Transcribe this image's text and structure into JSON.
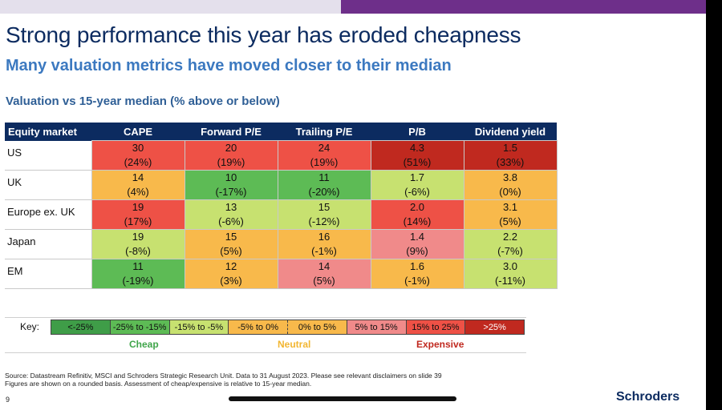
{
  "slide": {
    "title": "Strong performance this year has eroded cheapness",
    "subtitle": "Many valuation metrics have moved closer to their median",
    "table_heading": "Valuation vs 15-year median (% above or below)",
    "page_number": "9",
    "brand": "Schroders",
    "source_lines": [
      "Source: Datastream Refinitiv, MSCI and Schroders Strategic Research Unit. Data to 31 August 2023. Please see relevant disclaimers on slide 39",
      "Figures are shown on a rounded basis. Assessment of cheap/expensive is relative to 15-year median."
    ]
  },
  "table": {
    "headers": [
      "Equity market",
      "CAPE",
      "Forward P/E",
      "Trailing P/E",
      "P/B",
      "Dividend yield"
    ],
    "rows": [
      {
        "market": "US",
        "cells": [
          {
            "value": "30",
            "pct": "(24%)",
            "band": "red"
          },
          {
            "value": "20",
            "pct": "(19%)",
            "band": "red"
          },
          {
            "value": "24",
            "pct": "(19%)",
            "band": "red"
          },
          {
            "value": "4.3",
            "pct": "(51%)",
            "band": "deepred"
          },
          {
            "value": "1.5",
            "pct": "(33%)",
            "band": "deepred"
          }
        ]
      },
      {
        "market": "UK",
        "cells": [
          {
            "value": "14",
            "pct": "(4%)",
            "band": "orange"
          },
          {
            "value": "10",
            "pct": "(-17%)",
            "band": "green"
          },
          {
            "value": "11",
            "pct": "(-20%)",
            "band": "green"
          },
          {
            "value": "1.7",
            "pct": "(-6%)",
            "band": "lime"
          },
          {
            "value": "3.8",
            "pct": "(0%)",
            "band": "orange"
          }
        ]
      },
      {
        "market": "Europe ex. UK",
        "cells": [
          {
            "value": "19",
            "pct": "(17%)",
            "band": "red"
          },
          {
            "value": "13",
            "pct": "(-6%)",
            "band": "lime"
          },
          {
            "value": "15",
            "pct": "(-12%)",
            "band": "lime"
          },
          {
            "value": "2.0",
            "pct": "(14%)",
            "band": "red"
          },
          {
            "value": "3.1",
            "pct": "(5%)",
            "band": "orange"
          }
        ]
      },
      {
        "market": "Japan",
        "cells": [
          {
            "value": "19",
            "pct": "(-8%)",
            "band": "lime"
          },
          {
            "value": "15",
            "pct": "(5%)",
            "band": "orange"
          },
          {
            "value": "16",
            "pct": "(-1%)",
            "band": "orange"
          },
          {
            "value": "1.4",
            "pct": "(9%)",
            "band": "pink"
          },
          {
            "value": "2.2",
            "pct": "(-7%)",
            "band": "lime"
          }
        ]
      },
      {
        "market": "EM",
        "cells": [
          {
            "value": "11",
            "pct": "(-19%)",
            "band": "green"
          },
          {
            "value": "12",
            "pct": "(3%)",
            "band": "orange"
          },
          {
            "value": "14",
            "pct": "(5%)",
            "band": "pink"
          },
          {
            "value": "1.6",
            "pct": "(-1%)",
            "band": "orange"
          },
          {
            "value": "3.0",
            "pct": "(-11%)",
            "band": "lime"
          }
        ]
      }
    ]
  },
  "key": {
    "label": "Key:",
    "items": [
      {
        "label": "<-25%",
        "color": "#3f9d48"
      },
      {
        "label": "-25% to -15%",
        "color": "#5dbb55"
      },
      {
        "label": "-15% to -5%",
        "color": "#c7e170"
      },
      {
        "label": "-5% to 0%",
        "color": "#f8b94b"
      },
      {
        "label": "0% to 5%",
        "color": "#f8b94b"
      },
      {
        "label": "5% to 15%",
        "color": "#f08a8a"
      },
      {
        "label": "15% to 25%",
        "color": "#ee5146"
      },
      {
        "label": ">25%",
        "color": "#c0291f"
      }
    ],
    "categories": {
      "cheap": "Cheap",
      "neutral": "Neutral",
      "expensive": "Expensive"
    }
  }
}
